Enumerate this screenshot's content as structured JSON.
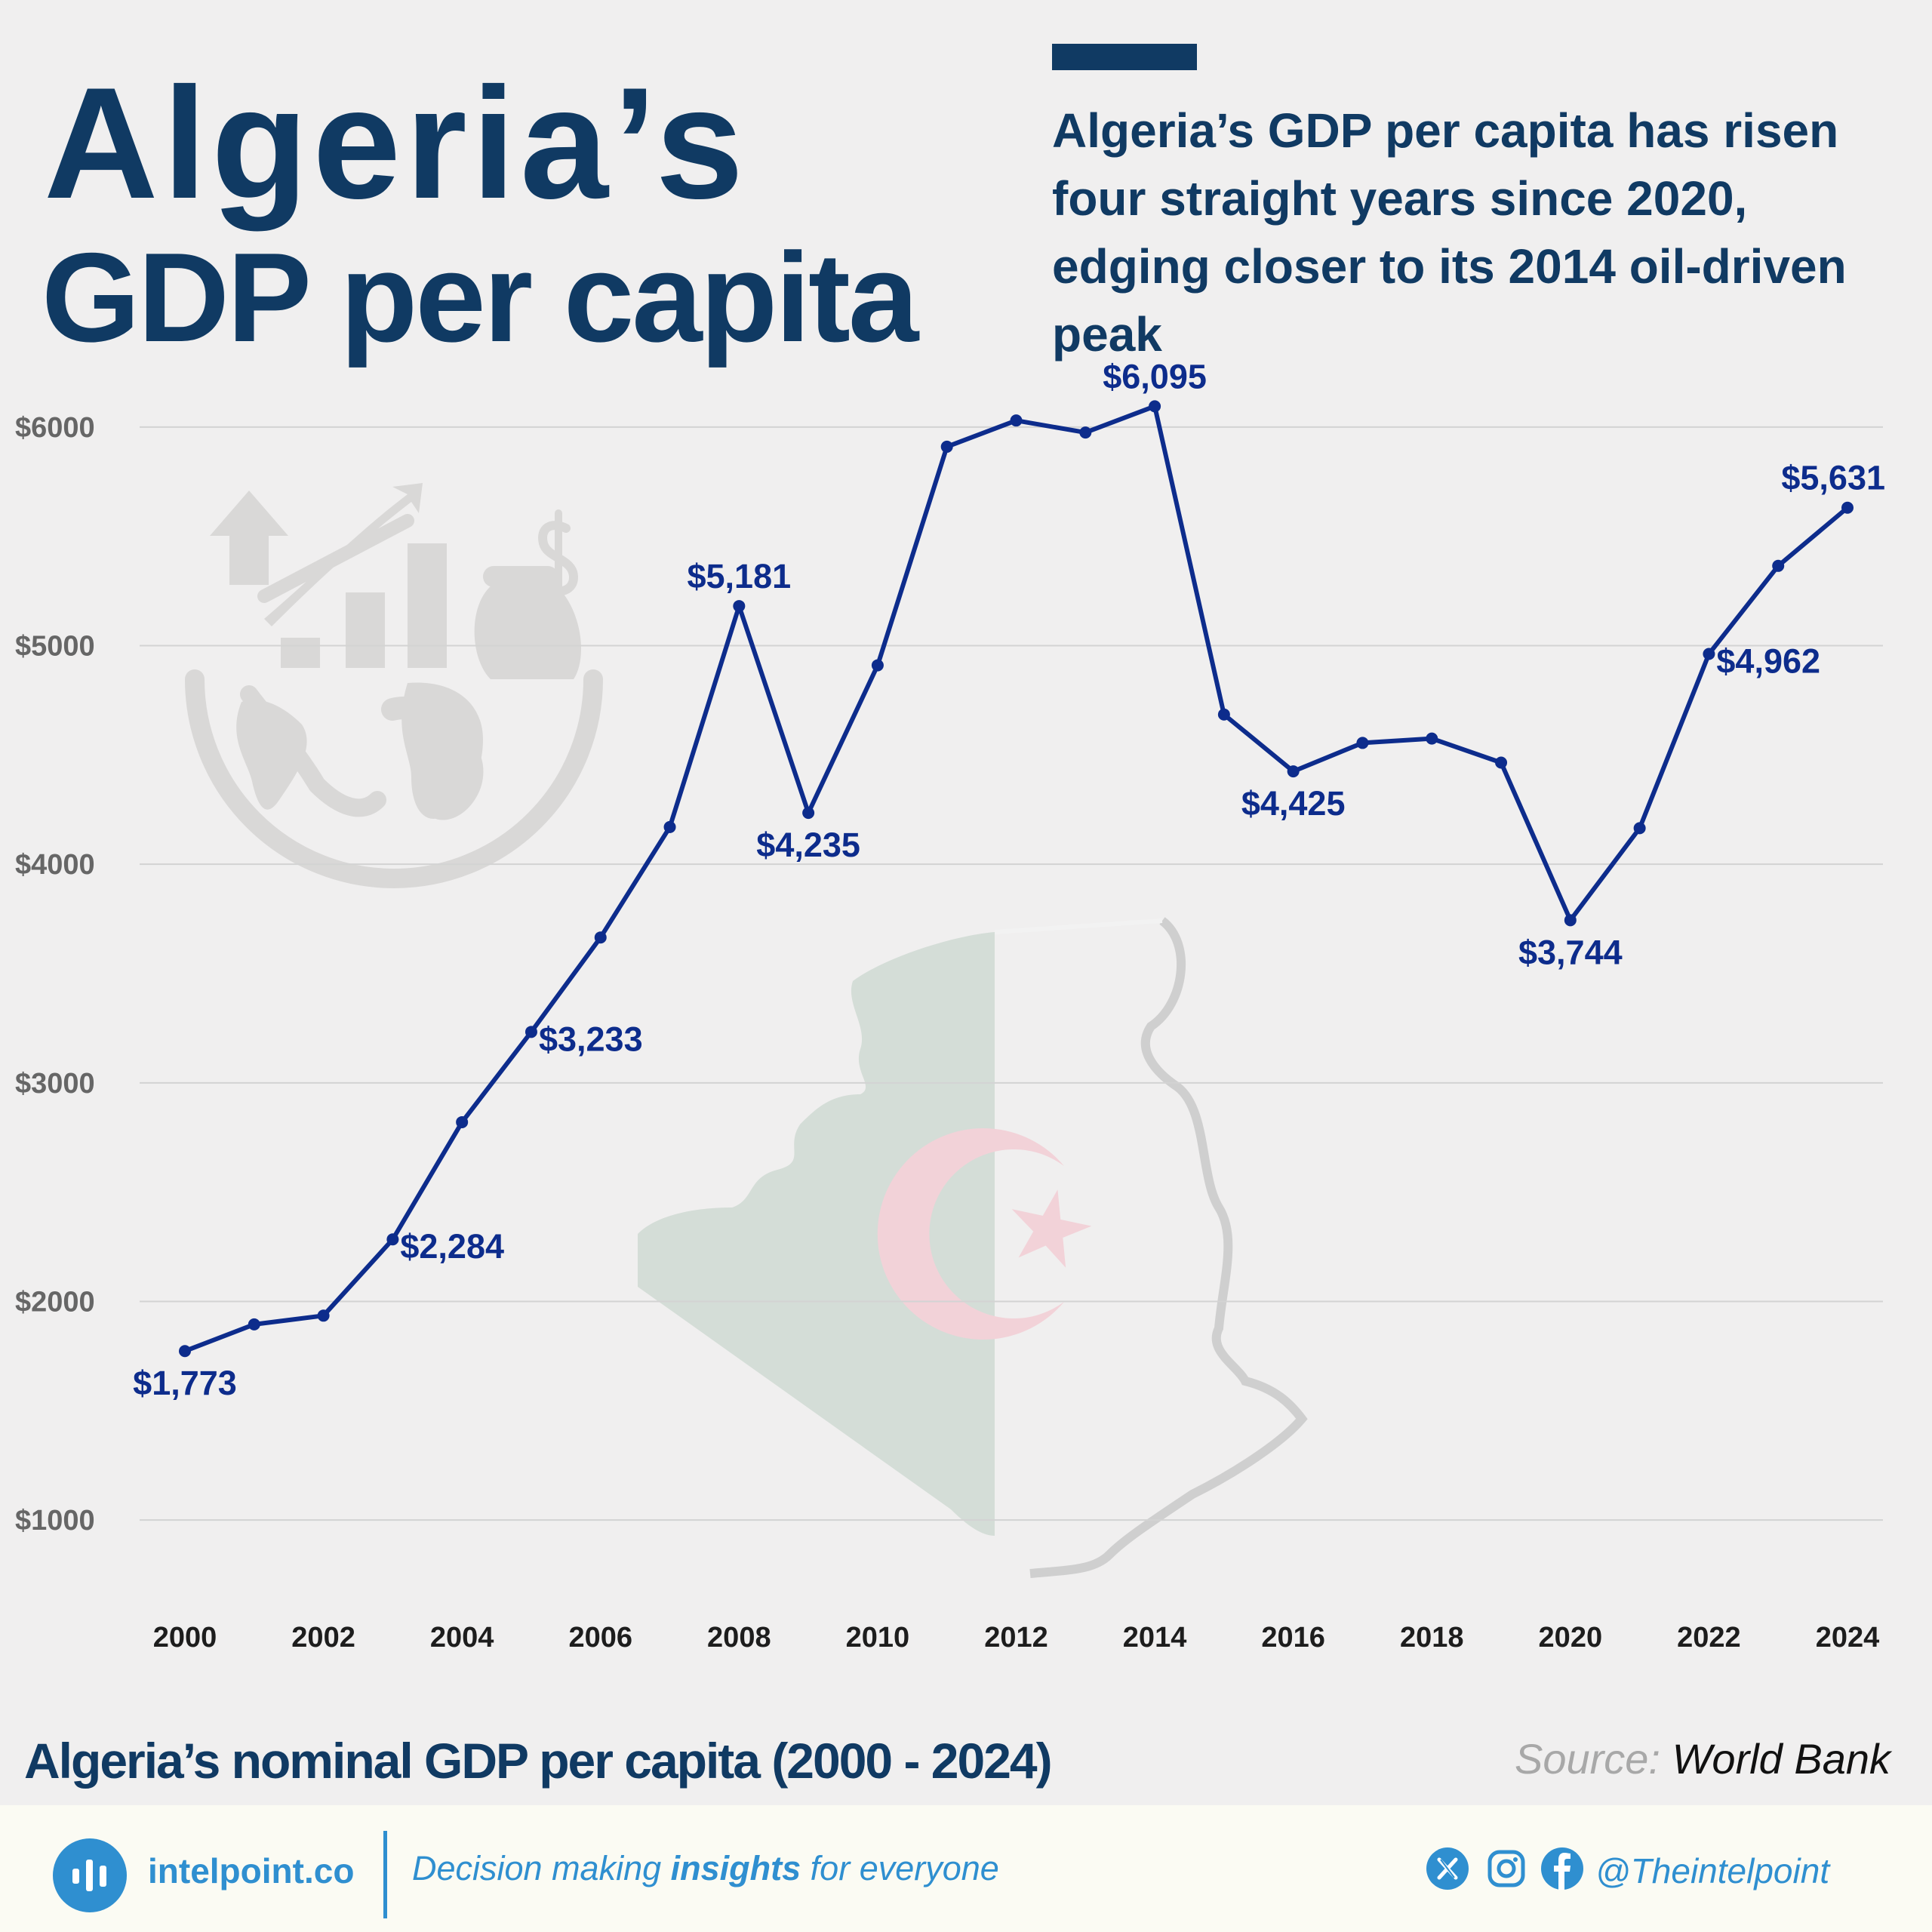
{
  "header": {
    "title_line1": "Algeria’s",
    "title_line2": "GDP per capita",
    "subtitle": "Algeria’s GDP per capita has risen four straight years since 2020, edging closer to its 2014 oil-driven peak"
  },
  "chart_data": {
    "type": "line",
    "title": "Algeria’s nominal GDP per capita (2000 - 2024)",
    "x": [
      2000,
      2001,
      2002,
      2003,
      2004,
      2005,
      2006,
      2007,
      2008,
      2009,
      2010,
      2011,
      2012,
      2013,
      2014,
      2015,
      2016,
      2017,
      2018,
      2019,
      2020,
      2021,
      2022,
      2023,
      2024
    ],
    "values": [
      1773,
      1895,
      1935,
      2284,
      2820,
      3233,
      3665,
      4170,
      5181,
      4235,
      4910,
      5910,
      6030,
      5975,
      6095,
      4685,
      4425,
      4555,
      4575,
      4465,
      3744,
      4165,
      4962,
      5365,
      5631
    ],
    "data_labels": [
      {
        "x": 2000,
        "text": "$1,773",
        "pos": "below"
      },
      {
        "x": 2003,
        "text": "$2,284",
        "pos": "right-below"
      },
      {
        "x": 2005,
        "text": "$3,233",
        "pos": "right-below"
      },
      {
        "x": 2008,
        "text": "$5,181",
        "pos": "above"
      },
      {
        "x": 2009,
        "text": "$4,235",
        "pos": "below"
      },
      {
        "x": 2014,
        "text": "$6,095",
        "pos": "above"
      },
      {
        "x": 2016,
        "text": "$4,425",
        "pos": "below"
      },
      {
        "x": 2020,
        "text": "$3,744",
        "pos": "below"
      },
      {
        "x": 2022,
        "text": "$4,962",
        "pos": "right-below"
      },
      {
        "x": 2024,
        "text": "$5,631",
        "pos": "above"
      }
    ],
    "y_ticks": [
      1000,
      2000,
      3000,
      4000,
      5000,
      6000
    ],
    "y_tick_labels": [
      "$1000",
      "$2000",
      "$3000",
      "$4000",
      "$5000",
      "$6000"
    ],
    "x_ticks": [
      2000,
      2002,
      2004,
      2006,
      2008,
      2010,
      2012,
      2014,
      2016,
      2018,
      2020,
      2022,
      2024
    ],
    "x_tick_labels": [
      "2000",
      "2002",
      "2004",
      "2006",
      "2008",
      "2010",
      "2012",
      "2014",
      "2016",
      "2018",
      "2020",
      "2022",
      "2024"
    ],
    "ylim": [
      600,
      6400
    ],
    "xlim": [
      2000,
      2024
    ],
    "grid": "horizontal",
    "line_color": "#0d2c8c"
  },
  "source": {
    "label": "Source:",
    "value": "World Bank"
  },
  "footer": {
    "brand": "intelpoint.co",
    "tagline_pre": "Decision making ",
    "tagline_bold": "insights",
    "tagline_post": " for everyone",
    "handle": "@Theintelpoint",
    "brand_color": "#2f8fd0",
    "social_icons": [
      "x-icon",
      "instagram-icon",
      "facebook-icon"
    ]
  },
  "colors": {
    "title": "#103a63",
    "line": "#0d2c8c",
    "background": "#f0efef"
  }
}
